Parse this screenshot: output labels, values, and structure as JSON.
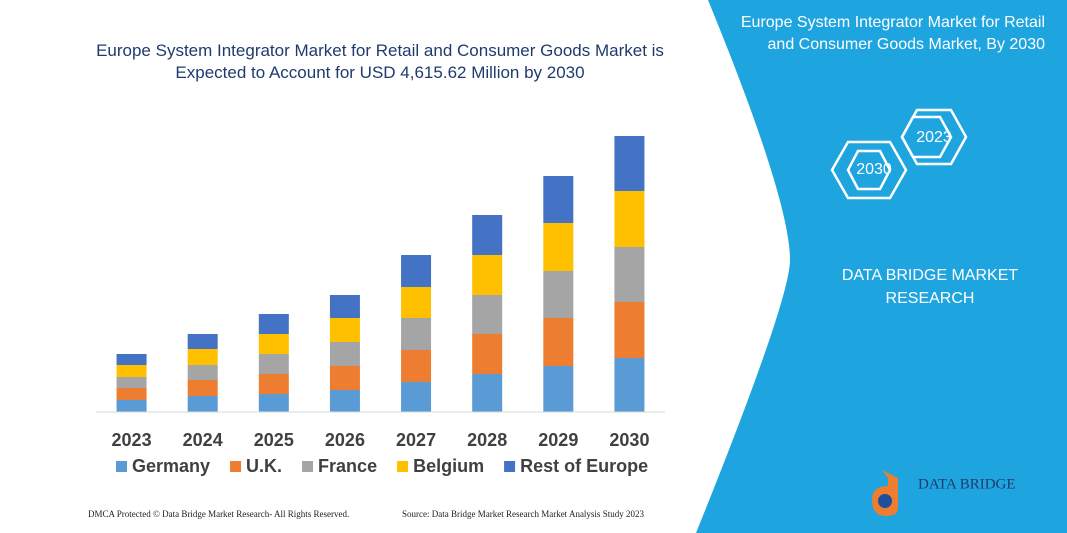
{
  "chart_data": {
    "type": "stacked_bar",
    "title": "Europe System Integrator Market for Retail and Consumer Goods Market is Expected to Account for USD 4,615.62 Million by 2030",
    "categories": [
      "2023",
      "2024",
      "2025",
      "2026",
      "2027",
      "2028",
      "2029",
      "2030"
    ],
    "series": [
      {
        "name": "Germany",
        "color": "#5b9bd5",
        "values": [
          12,
          16,
          18,
          22,
          30,
          38,
          46,
          54
        ]
      },
      {
        "name": "U.K.",
        "color": "#ed7d31",
        "values": [
          12,
          16,
          20,
          24,
          32,
          40,
          48,
          56
        ]
      },
      {
        "name": "France",
        "color": "#a5a5a5",
        "values": [
          11,
          15,
          20,
          24,
          32,
          39,
          47,
          55
        ]
      },
      {
        "name": "Belgium",
        "color": "#ffc000",
        "values": [
          12,
          16,
          20,
          24,
          31,
          40,
          48,
          56
        ]
      },
      {
        "name": "Rest of Europe",
        "color": "#4472c4",
        "values": [
          11,
          15,
          20,
          23,
          32,
          40,
          47,
          55
        ]
      }
    ],
    "ylim": [
      0,
      300
    ]
  },
  "panel": {
    "title": "Europe System Integrator Market for Retail and Consumer Goods Market, By 2030",
    "hexagons": [
      "2023",
      "2030"
    ],
    "brand": "DATA BRIDGE MARKET RESEARCH",
    "logo": "DATA BRIDGE"
  },
  "footer": {
    "left": "DMCA Protected © Data Bridge Market Research-  All Rights Reserved.",
    "right": "Source: Data Bridge Market Research  Market Analysis Study 2023"
  }
}
